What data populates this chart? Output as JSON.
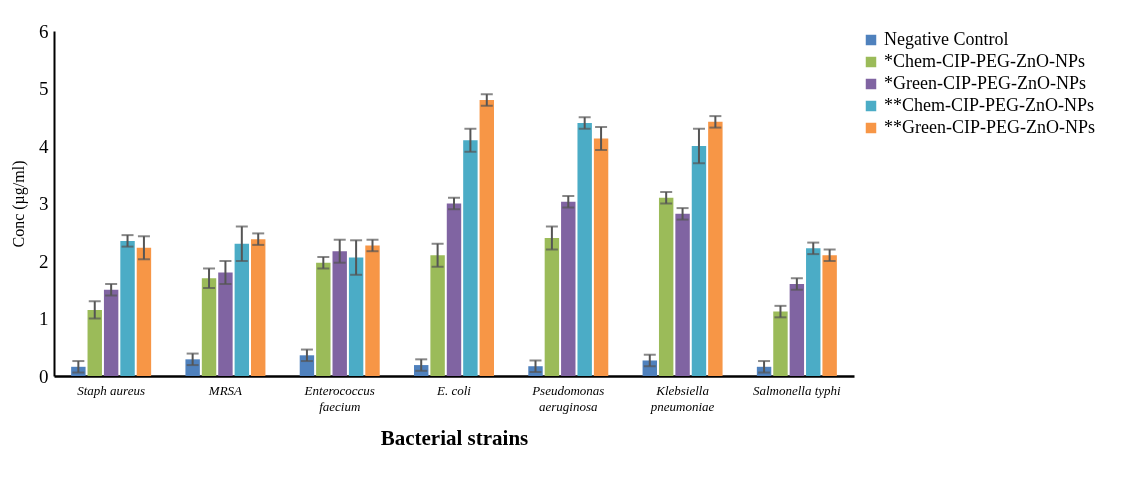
{
  "chart_data": {
    "type": "bar",
    "xlabel": "Bacterial strains",
    "ylabel": "Conc (µg/ml)",
    "categories": [
      "Staph aureus",
      "MRSA",
      "Enterococcus\nfaecium",
      "E. coli",
      "Pseudomonas\naeruginosa",
      "Klebsiella\npneumoniae",
      "Salmonella typhi"
    ],
    "series": [
      {
        "name": "Negative Control",
        "color": "#4f81bd",
        "values": [
          0.16,
          0.29,
          0.36,
          0.19,
          0.17,
          0.27,
          0.16
        ],
        "errors": [
          0.1,
          0.1,
          0.1,
          0.1,
          0.1,
          0.1,
          0.1
        ]
      },
      {
        "name": "*Chem-CIP-PEG-ZnO-NPs",
        "color": "#9bbb59",
        "values": [
          1.15,
          1.7,
          1.97,
          2.1,
          2.4,
          3.1,
          1.12
        ],
        "errors": [
          0.15,
          0.17,
          0.1,
          0.2,
          0.2,
          0.1,
          0.1
        ]
      },
      {
        "name": "*Green-CIP-PEG-ZnO-NPs",
        "color": "#8064a2",
        "values": [
          1.5,
          1.8,
          2.17,
          3.0,
          3.03,
          2.82,
          1.6
        ],
        "errors": [
          0.1,
          0.2,
          0.2,
          0.1,
          0.1,
          0.1,
          0.1
        ]
      },
      {
        "name": "**Chem-CIP-PEG-ZnO-NPs",
        "color": "#4bacc6",
        "values": [
          2.35,
          2.3,
          2.06,
          4.1,
          4.4,
          4.0,
          2.22
        ],
        "errors": [
          0.1,
          0.3,
          0.3,
          0.2,
          0.1,
          0.3,
          0.1
        ]
      },
      {
        "name": "**Green-CIP-PEG-ZnO-NPs",
        "color": "#f79646",
        "values": [
          2.23,
          2.38,
          2.27,
          4.8,
          4.13,
          4.42,
          2.1
        ],
        "errors": [
          0.2,
          0.1,
          0.1,
          0.1,
          0.2,
          0.1,
          0.1
        ]
      }
    ],
    "ylim": [
      0,
      6
    ],
    "yticks": [
      0,
      1,
      2,
      3,
      4,
      5,
      6
    ],
    "grid": false,
    "legend": "top right"
  }
}
